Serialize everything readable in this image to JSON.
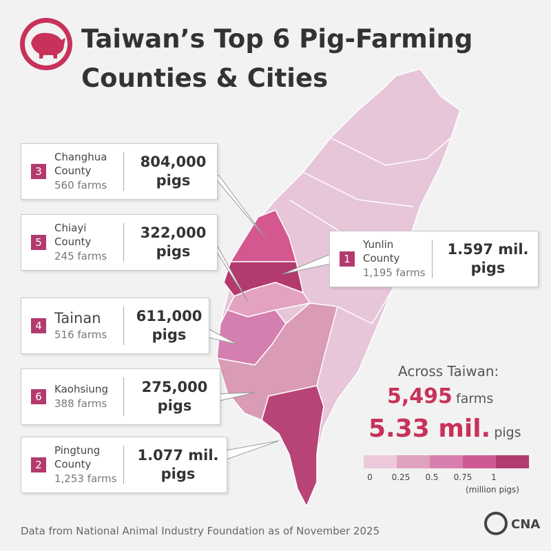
{
  "header": {
    "title_lines": [
      "Taiwan’s Top 6 Pig-Farming",
      "Counties & Cities"
    ]
  },
  "callouts": [
    {
      "rank": 3,
      "name": "Changhua County",
      "farms": "560 farms",
      "amount": "804,000",
      "unit": "pigs"
    },
    {
      "rank": 5,
      "name": "Chiayi County",
      "farms": "245 farms",
      "amount": "322,000",
      "unit": "pigs"
    },
    {
      "rank": 4,
      "name": "Tainan",
      "farms": "516 farms",
      "amount": "611,000",
      "unit": "pigs"
    },
    {
      "rank": 6,
      "name": "Kaohsiung",
      "farms": "388 farms",
      "amount": "275,000",
      "unit": "pigs"
    },
    {
      "rank": 2,
      "name": "Pingtung County",
      "farms": "1,253 farms",
      "amount": "1.077 mil.",
      "unit": "pigs"
    },
    {
      "rank": 1,
      "name": "Yunlin County",
      "farms": "1,195 farms",
      "amount": "1.597 mil.",
      "unit": "pigs"
    }
  ],
  "summary": {
    "heading": "Across Taiwan:",
    "farms_value": "5,495",
    "farms_unit": "farms",
    "pigs_value": "5.33 mil.",
    "pigs_unit": "pigs"
  },
  "legend": {
    "colors": [
      "#ecc9da",
      "#dfa3bf",
      "#d97fae",
      "#cd5a93",
      "#b23a6e"
    ],
    "ticks": [
      0,
      0.25,
      0.5,
      0.75,
      1
    ],
    "unit_label": "(million pigs)"
  },
  "footer": {
    "source": "Data from National Animal Industry Foundation as of November 2025",
    "logo": "CNA"
  }
}
